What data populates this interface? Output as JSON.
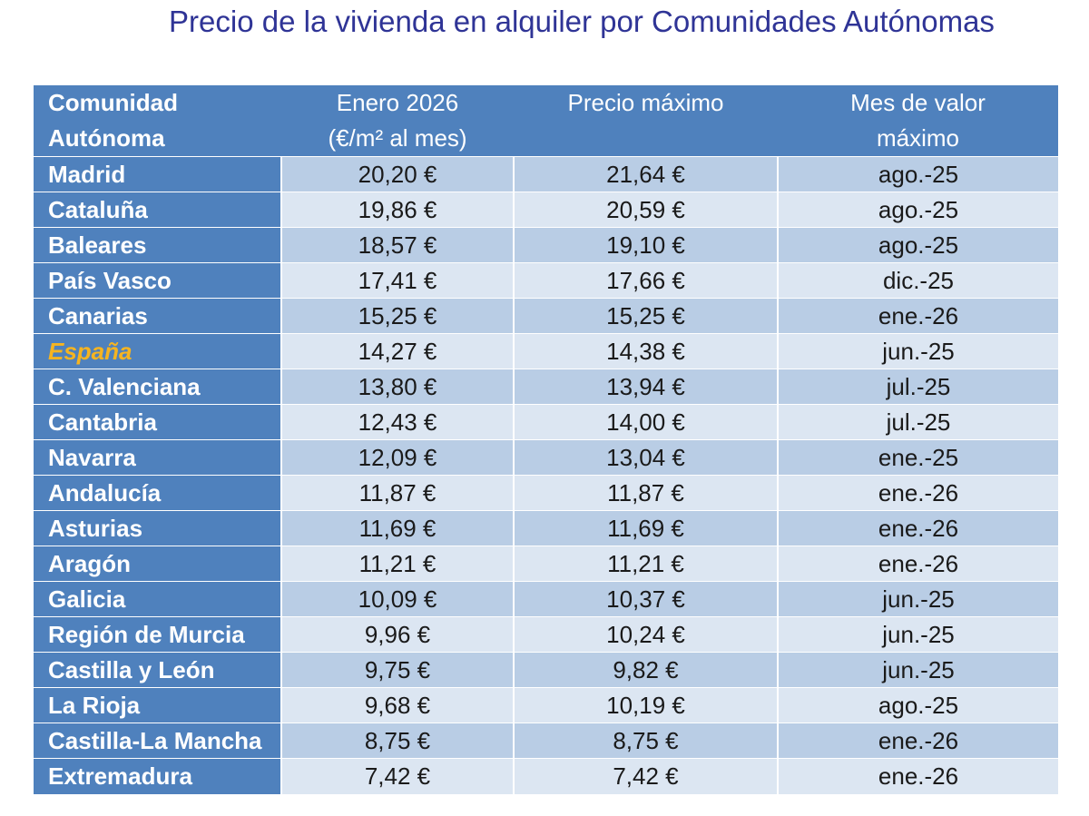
{
  "title": "Precio de la vivienda en alquiler por Comunidades Autónomas",
  "table": {
    "headers": {
      "region": [
        "Comunidad",
        "Autónoma"
      ],
      "january": [
        "Enero 2026",
        "(€/m² al mes)"
      ],
      "max_price": [
        "Precio máximo"
      ],
      "max_month": [
        "Mes de valor",
        "máximo"
      ]
    },
    "rows": [
      {
        "region": "Madrid",
        "january": "20,20 €",
        "max_price": "21,64 €",
        "max_month": "ago.-25"
      },
      {
        "region": "Cataluña",
        "january": "19,86 €",
        "max_price": "20,59 €",
        "max_month": "ago.-25"
      },
      {
        "region": "Baleares",
        "january": "18,57 €",
        "max_price": "19,10 €",
        "max_month": "ago.-25"
      },
      {
        "region": "País Vasco",
        "january": "17,41 €",
        "max_price": "17,66 €",
        "max_month": "dic.-25"
      },
      {
        "region": "Canarias",
        "january": "15,25 €",
        "max_price": "15,25 €",
        "max_month": "ene.-26"
      },
      {
        "region": "España",
        "january": "14,27 €",
        "max_price": "14,38 €",
        "max_month": "jun.-25",
        "highlight": true
      },
      {
        "region": "C. Valenciana",
        "january": "13,80 €",
        "max_price": "13,94 €",
        "max_month": "jul.-25"
      },
      {
        "region": "Cantabria",
        "january": "12,43 €",
        "max_price": "14,00 €",
        "max_month": "jul.-25"
      },
      {
        "region": "Navarra",
        "january": "12,09 €",
        "max_price": "13,04 €",
        "max_month": "ene.-25"
      },
      {
        "region": "Andalucía",
        "january": "11,87 €",
        "max_price": "11,87 €",
        "max_month": "ene.-26"
      },
      {
        "region": "Asturias",
        "january": "11,69 €",
        "max_price": "11,69 €",
        "max_month": "ene.-26"
      },
      {
        "region": "Aragón",
        "january": "11,21 €",
        "max_price": "11,21 €",
        "max_month": "ene.-26"
      },
      {
        "region": "Galicia",
        "january": "10,09 €",
        "max_price": "10,37 €",
        "max_month": "jun.-25"
      },
      {
        "region": "Región de Murcia",
        "january": "9,96 €",
        "max_price": "10,24 €",
        "max_month": "jun.-25"
      },
      {
        "region": "Castilla y León",
        "january": "9,75 €",
        "max_price": "9,82 €",
        "max_month": "jun.-25"
      },
      {
        "region": "La Rioja",
        "january": "9,68 €",
        "max_price": "10,19 €",
        "max_month": "ago.-25"
      },
      {
        "region": "Castilla-La Mancha",
        "january": "8,75 €",
        "max_price": "8,75 €",
        "max_month": "ene.-26"
      },
      {
        "region": "Extremadura",
        "january": "7,42 €",
        "max_price": "7,42 €",
        "max_month": "ene.-26"
      }
    ]
  },
  "colors": {
    "title": "#2f3496",
    "header_bg": "#4f81bd",
    "band_dark": "#b9cde5",
    "band_light": "#dce6f2",
    "highlight_text": "#f6b420"
  }
}
